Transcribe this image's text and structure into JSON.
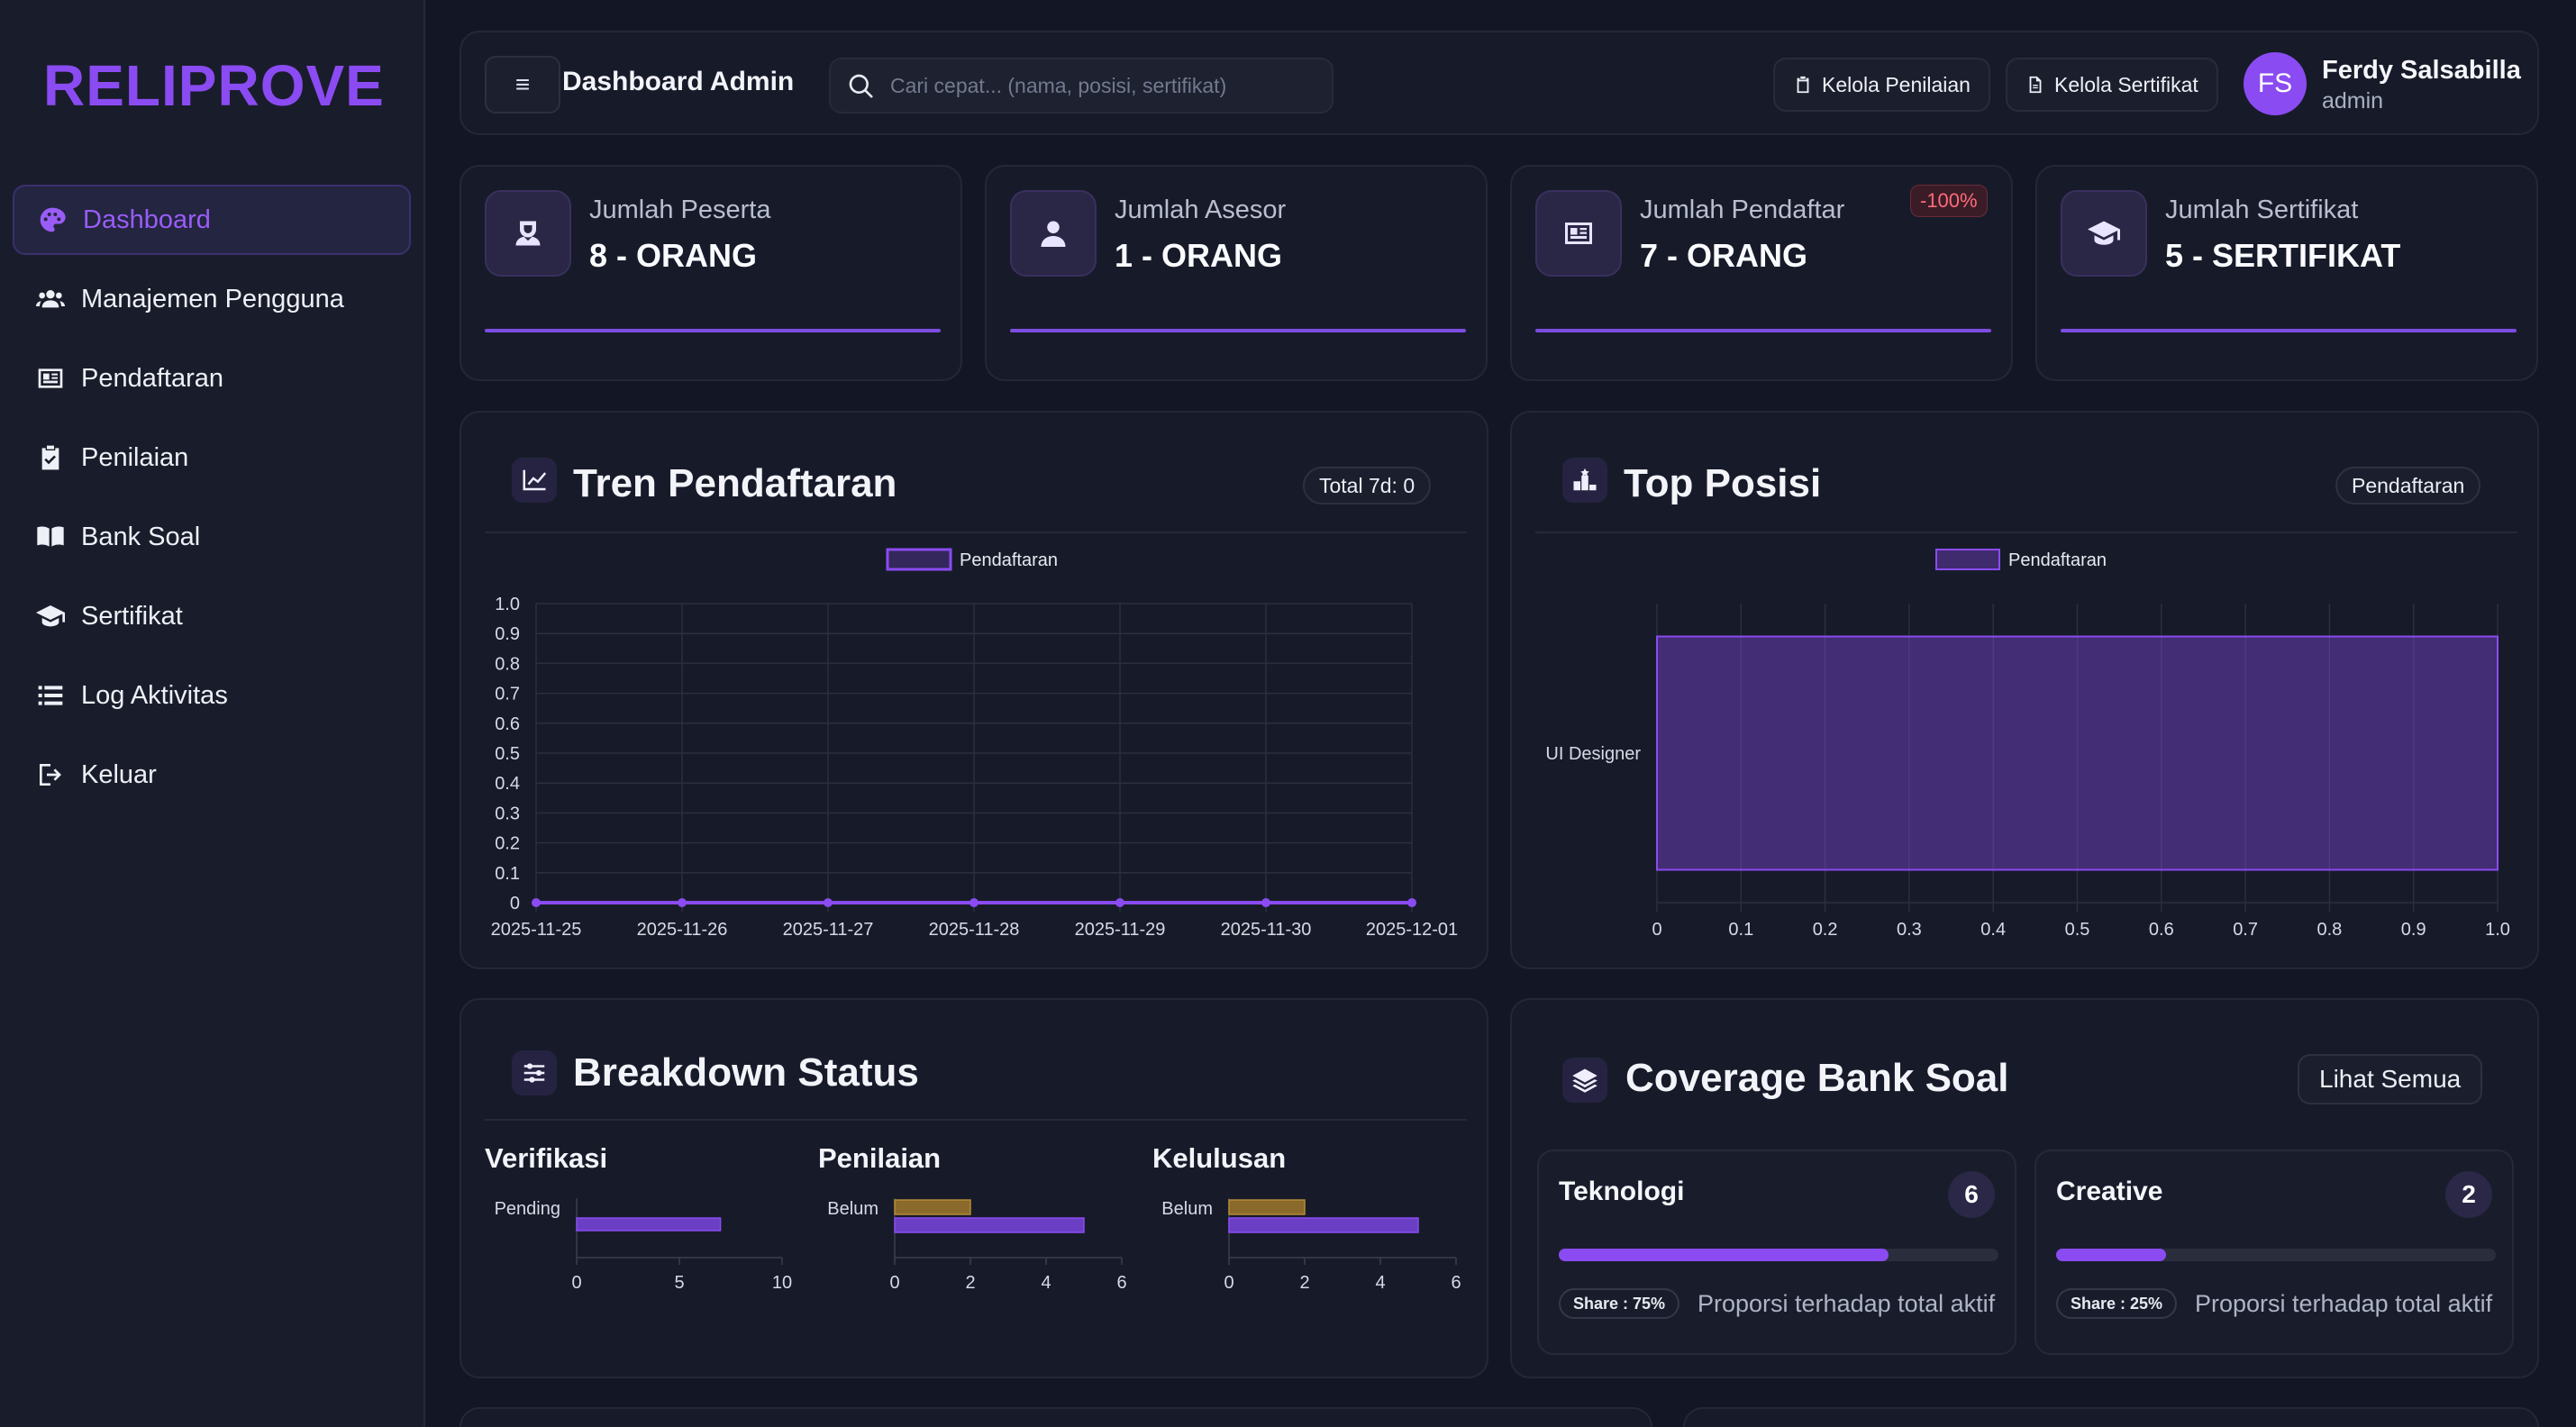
{
  "app": {
    "brand": "RELIPROVE"
  },
  "sidebar": {
    "items": [
      {
        "label": "Dashboard",
        "icon": "palette-icon",
        "active": true
      },
      {
        "label": "Manajemen Pengguna",
        "icon": "users-icon"
      },
      {
        "label": "Pendaftaran",
        "icon": "id-card-icon"
      },
      {
        "label": "Penilaian",
        "icon": "clipboard-check-icon"
      },
      {
        "label": "Bank Soal",
        "icon": "book-open-icon"
      },
      {
        "label": "Sertifikat",
        "icon": "graduation-cap-icon"
      },
      {
        "label": "Log Aktivitas",
        "icon": "list-icon"
      },
      {
        "label": "Keluar",
        "icon": "logout-icon"
      }
    ]
  },
  "header": {
    "menu_label": "≡",
    "title": "Dashboard Admin",
    "search_placeholder": "Cari cepat... (nama, posisi, sertifikat)",
    "btn_penilaian": "Kelola Penilaian",
    "btn_sertifikat": "Kelola Sertifikat",
    "user": {
      "initials": "FS",
      "name": "Ferdy Salsabilla",
      "role": "admin"
    }
  },
  "stats": [
    {
      "label": "Jumlah Peserta",
      "value": "8 - ORANG",
      "icon": "user-tie-icon"
    },
    {
      "label": "Jumlah Asesor",
      "value": "1 - ORANG",
      "icon": "user-icon"
    },
    {
      "label": "Jumlah Pendaftar",
      "value": "7 - ORANG",
      "icon": "id-card-icon",
      "badge": "-100%"
    },
    {
      "label": "Jumlah Sertifikat",
      "value": "5 - SERTIFIKAT",
      "icon": "graduation-cap-icon"
    }
  ],
  "tren": {
    "title": "Tren Pendaftaran",
    "pill": "Total 7d: 0"
  },
  "top_posisi": {
    "title": "Top Posisi",
    "pill": "Pendaftaran"
  },
  "breakdown": {
    "title": "Breakdown Status",
    "groups": [
      "Verifikasi",
      "Penilaian",
      "Kelulusan"
    ]
  },
  "coverage": {
    "title": "Coverage Bank Soal",
    "button": "Lihat Semua",
    "cards": [
      {
        "title": "Teknologi",
        "count": "6",
        "share": "Share : 75%",
        "share_value": 0.75,
        "desc": "Proporsi terhadap total aktif"
      },
      {
        "title": "Creative",
        "count": "2",
        "share": "Share : 25%",
        "share_value": 0.25,
        "desc": "Proporsi terhadap total aktif"
      }
    ]
  },
  "chart_data": [
    {
      "type": "line",
      "legend": [
        "Pendaftaran"
      ],
      "x": [
        "2025-11-25",
        "2025-11-26",
        "2025-11-27",
        "2025-11-28",
        "2025-11-29",
        "2025-11-30",
        "2025-12-01"
      ],
      "series": [
        {
          "name": "Pendaftaran",
          "values": [
            0,
            0,
            0,
            0,
            0,
            0,
            0
          ]
        }
      ],
      "y_ticks": [
        "0",
        "0.1",
        "0.2",
        "0.3",
        "0.4",
        "0.5",
        "0.6",
        "0.7",
        "0.8",
        "0.9",
        "1.0"
      ],
      "ylim": [
        0,
        1
      ],
      "grid": true,
      "legend_position": "top"
    },
    {
      "type": "bar",
      "orientation": "horizontal",
      "legend": [
        "Pendaftaran"
      ],
      "categories": [
        "UI Designer"
      ],
      "series": [
        {
          "name": "Pendaftaran",
          "values": [
            1
          ]
        }
      ],
      "x_ticks": [
        "0",
        "0.1",
        "0.2",
        "0.3",
        "0.4",
        "0.5",
        "0.6",
        "0.7",
        "0.8",
        "0.9",
        "1.0"
      ],
      "xlim": [
        0,
        1
      ],
      "grid": true,
      "legend_position": "top"
    },
    {
      "type": "bar",
      "orientation": "horizontal",
      "title": "Verifikasi",
      "categories": [
        "Pending"
      ],
      "values": [
        7
      ],
      "x_ticks": [
        "0",
        "5",
        "10"
      ],
      "xlim": [
        0,
        10
      ]
    },
    {
      "type": "bar",
      "orientation": "horizontal",
      "title": "Penilaian",
      "categories": [
        "Belum"
      ],
      "series": [
        {
          "values": [
            2
          ]
        },
        {
          "values": [
            5
          ]
        }
      ],
      "x_ticks": [
        "0",
        "2",
        "4",
        "6"
      ],
      "xlim": [
        0,
        6
      ]
    },
    {
      "type": "bar",
      "orientation": "horizontal",
      "title": "Kelulusan",
      "categories": [
        "Belum"
      ],
      "series": [
        {
          "values": [
            2
          ]
        },
        {
          "values": [
            5
          ]
        }
      ],
      "x_ticks": [
        "0",
        "2",
        "4",
        "6"
      ],
      "xlim": [
        0,
        6
      ]
    }
  ]
}
